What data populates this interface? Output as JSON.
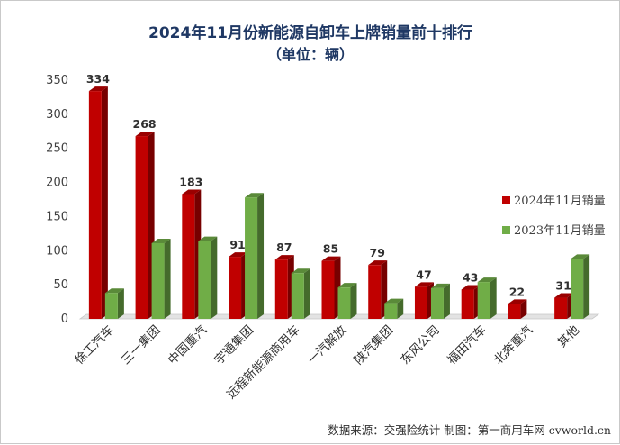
{
  "chart_data": {
    "type": "bar",
    "title": "2024年11月份新能源自卸车上牌销量前十排行",
    "subtitle": "（单位：辆）",
    "categories": [
      "徐工汽车",
      "三一集团",
      "中国重汽",
      "宇通集团",
      "远程新能源商用车",
      "一汽解放",
      "陕汽集团",
      "东风公司",
      "福田汽车",
      "北奔重汽",
      "其他"
    ],
    "series": [
      {
        "name": "2024年11月销量",
        "color": "#c00000",
        "values": [
          334,
          268,
          183,
          91,
          87,
          85,
          79,
          47,
          43,
          22,
          31
        ],
        "show_labels": true
      },
      {
        "name": "2023年11月销量",
        "color": "#70ad47",
        "values": [
          38,
          111,
          114,
          178,
          67,
          46,
          23,
          45,
          54,
          0,
          88
        ],
        "show_labels": false
      }
    ],
    "ylim": [
      0,
      350
    ],
    "yticks": [
      0,
      50,
      100,
      150,
      200,
      250,
      300,
      350
    ],
    "grid": false,
    "legend_position": "right",
    "source_note": "数据来源：交强险统计  制图：第一商用车网 cvworld.cn"
  }
}
